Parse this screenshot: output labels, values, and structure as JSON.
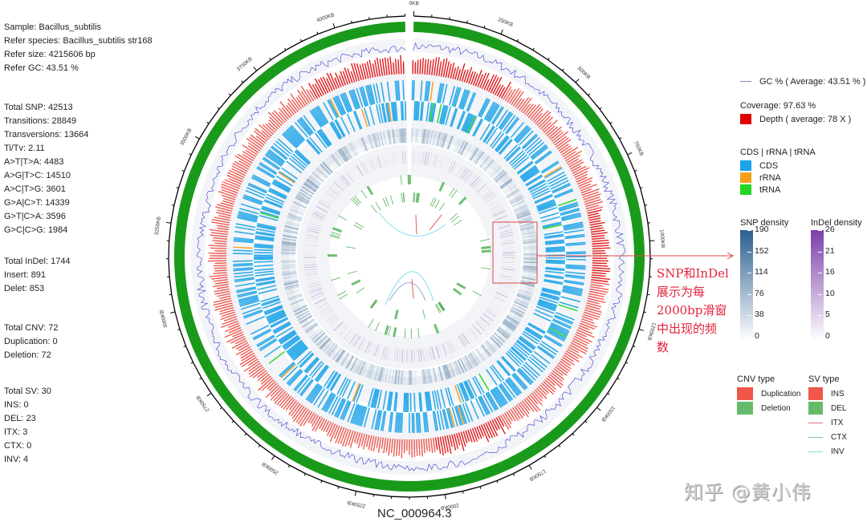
{
  "sample_info": {
    "sample": "Sample: Bacillus_subtilis",
    "species": "Refer species: Bacillus_subtilis str168",
    "size": "Refer size: 4215606 bp",
    "gc": "Refer GC: 43.51 %"
  },
  "snp_stats": [
    "Total SNP: 42513",
    "Transitions: 28849",
    "Transversions: 13664",
    "Ti/Tv: 2.11",
    "A>T|T>A: 4483",
    "A>G|T>C: 14510",
    "A>C|T>G: 3601",
    "G>A|C>T: 14339",
    "G>T|C>A: 3596",
    "G>C|C>G: 1984"
  ],
  "indel_stats": [
    "Total InDel: 1744",
    "Insert: 891",
    "Delet: 853"
  ],
  "cnv_stats": [
    "Total CNV: 72",
    "Duplication: 0",
    "Deletion: 72"
  ],
  "sv_stats": [
    "Total SV: 30",
    "INS: 0",
    "DEL: 23",
    "ITX: 3",
    "CTX: 0",
    "INV: 4"
  ],
  "legend": {
    "gc": "GC % ( Average: 43.51 % )",
    "coverage": "Coverage: 97.63 %",
    "depth": "Depth ( average: 78 X )",
    "feature_title": "CDS | rRNA | tRNA",
    "features": [
      {
        "label": "CDS",
        "color": "#1aa3e8"
      },
      {
        "label": "rRNA",
        "color": "#f5a01a"
      },
      {
        "label": "tRNA",
        "color": "#22d622"
      }
    ],
    "snp_density": {
      "title": "SNP density",
      "ticks": [
        "190",
        "152",
        "114",
        "76",
        "38",
        "0"
      ],
      "color": "#2c5f8f"
    },
    "indel_density": {
      "title": "InDel density",
      "ticks": [
        "26",
        "21",
        "16",
        "10",
        "5",
        "0"
      ],
      "color": "#7b3fa8"
    },
    "cnv_title": "CNV type",
    "cnv_types": [
      {
        "label": "Duplication",
        "color": "#f0564a"
      },
      {
        "label": "Deletion",
        "color": "#66bb6a"
      }
    ],
    "sv_title": "SV type",
    "sv_types": [
      {
        "label": "INS",
        "color": "#f0564a",
        "kind": "box"
      },
      {
        "label": "DEL",
        "color": "#66bb6a",
        "kind": "box"
      },
      {
        "label": "ITX",
        "color": "#e57373",
        "kind": "line"
      },
      {
        "label": "CTX",
        "color": "#81c784",
        "kind": "line"
      },
      {
        "label": "INV",
        "color": "#80deea",
        "kind": "line"
      }
    ]
  },
  "annotation": {
    "lines": [
      "SNP和InDel",
      "展示为每",
      "2000bp滑窗",
      "中出现的频",
      "数"
    ],
    "color": "#e0243c"
  },
  "sequence_name": "NC_000964.3",
  "watermark": "知乎 @黄小伟",
  "chart_data": {
    "type": "circos",
    "title": "NC_000964.3",
    "genome_size_bp": 4215606,
    "tick_labels": [
      "0KB",
      "250KB",
      "500KB",
      "750KB",
      "1000KB",
      "1250KB",
      "1500KB",
      "1750KB",
      "2000KB",
      "2250KB",
      "2500KB",
      "2750KB",
      "3000KB",
      "3250KB",
      "3500KB",
      "3750KB",
      "4000KB"
    ],
    "tracks": [
      {
        "name": "chromosome",
        "color": "#1a9a1a"
      },
      {
        "name": "GC %",
        "average": 43.51,
        "color": "#3a3ad0"
      },
      {
        "name": "Depth",
        "average": 78,
        "coverage_pct": 97.63,
        "color": "#e41a1a"
      },
      {
        "name": "CDS|rRNA|tRNA",
        "colors": [
          "#1aa3e8",
          "#f5a01a",
          "#22d622"
        ]
      },
      {
        "name": "SNP density",
        "range": [
          0,
          190
        ],
        "window_bp": 2000
      },
      {
        "name": "InDel density",
        "range": [
          0,
          26
        ],
        "window_bp": 2000
      },
      {
        "name": "CNV",
        "duplication": 0,
        "deletion": 72
      },
      {
        "name": "SV",
        "INS": 0,
        "DEL": 23,
        "ITX": 3,
        "CTX": 0,
        "INV": 4
      }
    ]
  }
}
